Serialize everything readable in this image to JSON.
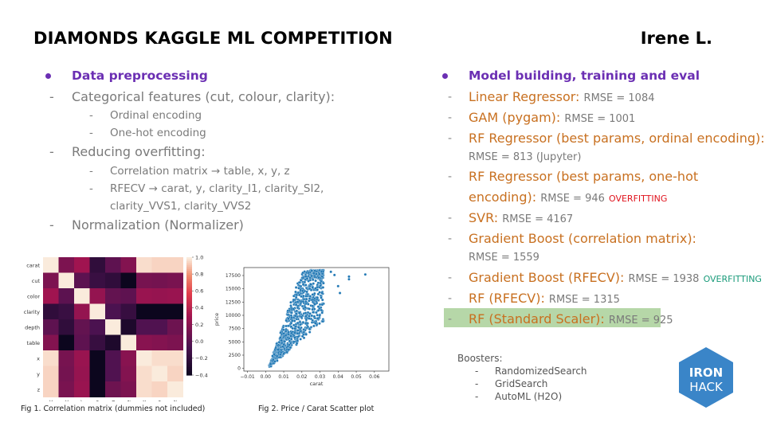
{
  "header": {
    "title": "DIAMONDS KAGGLE  ML COMPETITION",
    "author": "Irene L."
  },
  "left": {
    "heading": "Data preprocessing",
    "items": [
      {
        "text": "Categorical features (cut, colour, clarity):",
        "sub": [
          "Ordinal encoding",
          "One-hot encoding"
        ]
      },
      {
        "text": "Reducing overfitting:",
        "sub": [
          "Correlation matrix → table,  x,  y,  z",
          "RFECV → carat, y, clarity_I1, clarity_SI2,",
          "clarity_VVS1, clarity_VVS2"
        ]
      },
      {
        "text": "Normalization (Normalizer)"
      }
    ]
  },
  "right": {
    "heading": "Model building, training and eval",
    "models": [
      {
        "name": "Linear Regressor:",
        "rmse": "RMSE = 1084"
      },
      {
        "name": "GAM (pygam):",
        "rmse": "RMSE = 1001"
      },
      {
        "name": "RF Regressor (best params, ordinal encoding):",
        "rmse": "RMSE = 813 (Jupyter)"
      },
      {
        "name": "RF Regressor (best params, one-hot",
        "name2": "encoding):",
        "rmse": "RMSE = 946",
        "flag": "OVERFITTING"
      },
      {
        "name": "SVR:",
        "rmse": "RMSE = 4167"
      },
      {
        "name": "Gradient Boost (correlation matrix):",
        "rmse": "RMSE = 1559"
      },
      {
        "name": "Gradient Boost (RFECV):",
        "rmse": "RMSE = 1938",
        "flag": "OVERFITTING"
      },
      {
        "name": "RF (RFECV):",
        "rmse": "RMSE = 1315"
      },
      {
        "name": "RF (Standard Scaler):",
        "rmse": "RMSE = 925"
      }
    ],
    "boosters_label": "Boosters:",
    "boosters": [
      "RandomizedSearch",
      "GridSearch",
      "AutoML (H2O)"
    ]
  },
  "logo": {
    "line1": "IRON",
    "line2": "HACK",
    "color": "#3a85c8"
  },
  "captions": {
    "fig1": "Fig 1. Correlation matrix (dummies not included)",
    "fig2": "Fig 2. Price / Carat Scatter plot"
  },
  "chart_data": [
    {
      "type": "heatmap",
      "labels": [
        "carat",
        "cut",
        "color",
        "clarity",
        "depth",
        "table",
        "x",
        "y",
        "z"
      ],
      "colorbar_ticks": [
        "1.0",
        "0.8",
        "0.6",
        "0.4",
        "0.2",
        "0.0",
        "−0.2",
        "−0.4"
      ],
      "values": [
        [
          1.0,
          0.15,
          0.3,
          -0.2,
          0.03,
          0.18,
          0.97,
          0.95,
          0.95
        ],
        [
          0.15,
          1.0,
          0.02,
          -0.15,
          -0.2,
          -0.4,
          0.13,
          0.12,
          0.14
        ],
        [
          0.3,
          0.02,
          1.0,
          0.25,
          0.05,
          0.03,
          0.27,
          0.26,
          0.27
        ],
        [
          -0.2,
          -0.15,
          0.25,
          1.0,
          -0.05,
          -0.16,
          -0.4,
          -0.4,
          -0.4
        ],
        [
          0.03,
          -0.2,
          0.05,
          -0.05,
          1.0,
          -0.3,
          -0.03,
          -0.03,
          0.09
        ],
        [
          0.18,
          -0.4,
          0.03,
          -0.16,
          -0.3,
          1.0,
          0.2,
          0.18,
          0.15
        ],
        [
          0.97,
          0.13,
          0.27,
          -0.4,
          -0.03,
          0.2,
          1.0,
          0.97,
          0.97
        ],
        [
          0.95,
          0.12,
          0.26,
          -0.4,
          -0.03,
          0.18,
          0.97,
          1.0,
          0.95
        ],
        [
          0.95,
          0.14,
          0.27,
          -0.4,
          0.09,
          0.15,
          0.97,
          0.95,
          1.0
        ]
      ],
      "vmin": -0.4,
      "vmax": 1.0
    },
    {
      "type": "scatter",
      "xlabel": "carat",
      "ylabel": "price",
      "xticks": [
        "−0.01",
        "0.00",
        "0.01",
        "0.02",
        "0.03",
        "0.04",
        "0.05",
        "0.06"
      ],
      "yticks": [
        "0",
        "2500",
        "5000",
        "7500",
        "10000",
        "12500",
        "15000",
        "17500"
      ],
      "xlim": [
        -0.012,
        0.068
      ],
      "ylim": [
        -500,
        19000
      ],
      "color": "#1f77b4"
    }
  ]
}
